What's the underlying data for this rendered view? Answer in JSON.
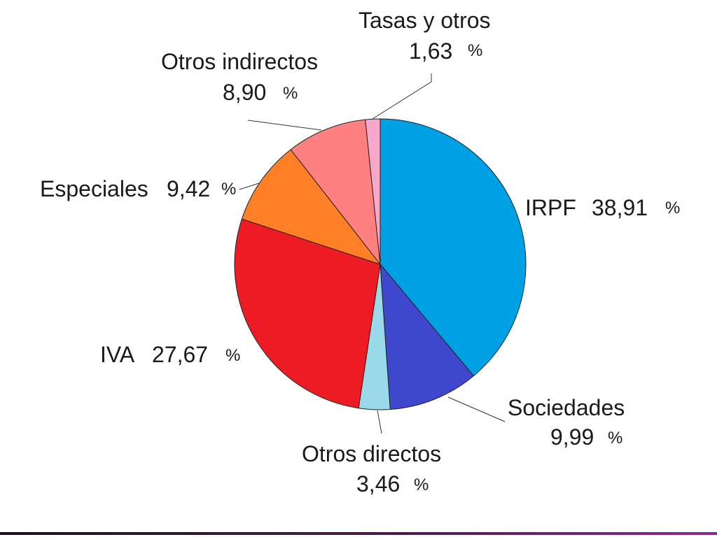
{
  "chart_data": {
    "type": "pie",
    "slices": [
      {
        "label": "IRPF",
        "value": 38.91,
        "value_text": "38,91",
        "color": "#00A0E4"
      },
      {
        "label": "Sociedades",
        "value": 9.99,
        "value_text": "9,99",
        "color": "#3F48CC"
      },
      {
        "label": "Otros directos",
        "value": 3.46,
        "value_text": "3,46",
        "color": "#99D9EA"
      },
      {
        "label": "IVA",
        "value": 27.67,
        "value_text": "27,67",
        "color": "#ED1C24"
      },
      {
        "label": "Especiales",
        "value": 9.42,
        "value_text": "9,42",
        "color": "#FF7F27"
      },
      {
        "label": "Otros indirectos",
        "value": 8.9,
        "value_text": "8,90",
        "color": "#FF8080"
      },
      {
        "label": "Tasas y otros",
        "value": 1.63,
        "value_text": "1,63",
        "color": "#F7A8C8"
      }
    ],
    "percent_symbol": "%",
    "direction": "clockwise",
    "start_angle": "top"
  }
}
